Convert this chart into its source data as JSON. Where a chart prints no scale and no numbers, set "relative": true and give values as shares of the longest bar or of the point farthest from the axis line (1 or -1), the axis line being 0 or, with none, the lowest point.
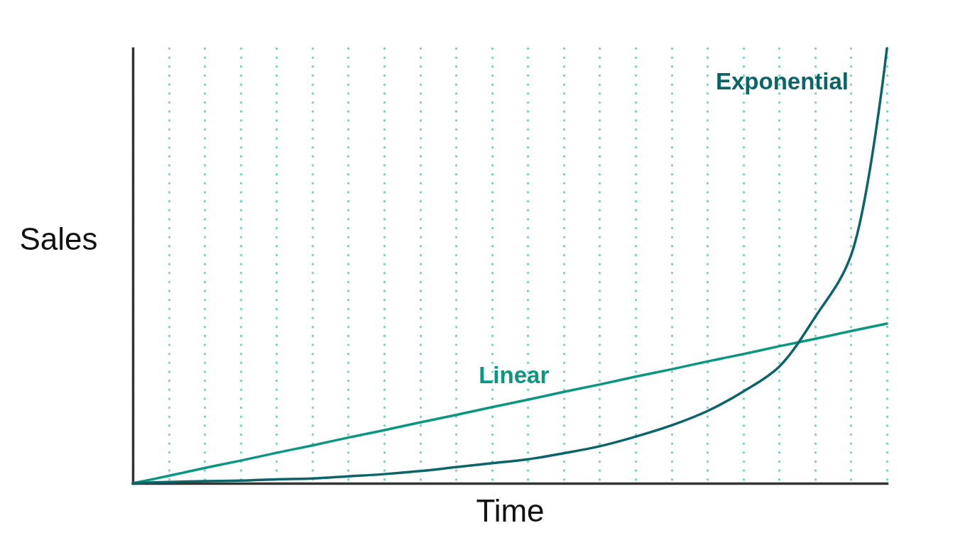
{
  "chart_data": {
    "type": "line",
    "relative": true,
    "xlabel": "Time",
    "ylabel": "Sales",
    "grid": "x",
    "categories": [
      null,
      null,
      null,
      null,
      null,
      null,
      null,
      null,
      null,
      null,
      null,
      null,
      null,
      null,
      null,
      null,
      null,
      null,
      null,
      null,
      null,
      null
    ],
    "series": [
      {
        "name": "Linear",
        "color": "#0a977f",
        "values": [
          0,
          0.017,
          0.035,
          0.052,
          0.07,
          0.087,
          0.105,
          0.122,
          0.14,
          0.157,
          0.175,
          0.192,
          0.21,
          0.227,
          0.245,
          0.262,
          0.28,
          0.297,
          0.315,
          0.332,
          0.35,
          0.367
        ]
      },
      {
        "name": "Exponential",
        "color": "#0b6468",
        "values": [
          0,
          0.003,
          0.005,
          0.006,
          0.009,
          0.011,
          0.016,
          0.021,
          0.028,
          0.037,
          0.046,
          0.055,
          0.069,
          0.085,
          0.107,
          0.133,
          0.166,
          0.211,
          0.268,
          0.382,
          0.524,
          1
        ]
      }
    ]
  }
}
